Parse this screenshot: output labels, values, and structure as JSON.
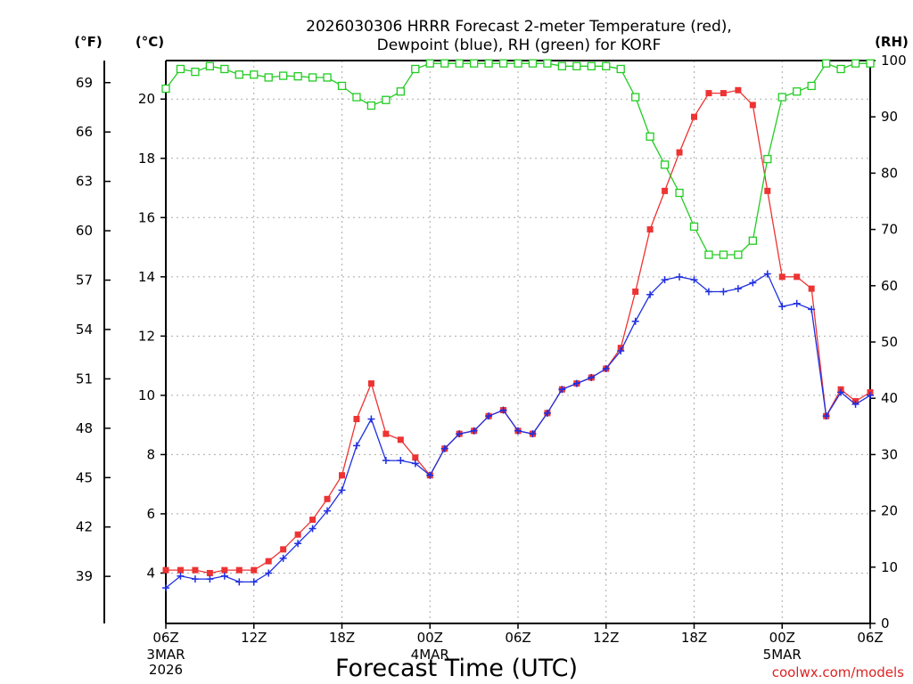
{
  "chart_data": {
    "type": "line",
    "title_line1": "2026030306 HRRR Forecast 2-meter Temperature (red),",
    "title_line2": "Dewpoint (blue), RH (green) for KORF",
    "xlabel": "Forecast Time (UTC)",
    "credit": "coolwx.com/models",
    "unit_labels": {
      "fahrenheit": "(°F)",
      "celsius": "(°C)",
      "rh": "(RH)"
    },
    "x_ticks": [
      "06Z",
      "12Z",
      "18Z",
      "00Z",
      "06Z",
      "12Z",
      "18Z",
      "00Z",
      "06Z"
    ],
    "x_ticks_hours": [
      0,
      6,
      12,
      18,
      24,
      30,
      36,
      42,
      48
    ],
    "date_labels": [
      {
        "hour": 0,
        "lines": [
          "3MAR",
          "2026"
        ]
      },
      {
        "hour": 18,
        "lines": [
          "4MAR"
        ]
      },
      {
        "hour": 42,
        "lines": [
          "5MAR"
        ]
      }
    ],
    "xlim": [
      0,
      48
    ],
    "ylim_celsius": [
      2.3,
      21.3
    ],
    "ylim_rh": [
      0,
      100
    ],
    "y_ticks_celsius": [
      4,
      6,
      8,
      10,
      12,
      14,
      16,
      18,
      20
    ],
    "y_ticks_fahrenheit": [
      39,
      42,
      45,
      48,
      51,
      54,
      57,
      60,
      63,
      66,
      69
    ],
    "y_ticks_rh": [
      0,
      10,
      20,
      30,
      40,
      50,
      60,
      70,
      80,
      90,
      100
    ],
    "grid": true,
    "colors": {
      "temperature": "#ee3333",
      "dewpoint": "#1f2fe0",
      "rh": "#22cc22"
    },
    "series": [
      {
        "name": "Temperature",
        "axis": "celsius",
        "x": [
          0,
          1,
          2,
          3,
          4,
          5,
          6,
          7,
          8,
          9,
          10,
          11,
          12,
          13,
          14,
          15,
          16,
          17,
          18,
          19,
          20,
          21,
          22,
          23,
          24,
          25,
          26,
          27,
          28,
          29,
          30,
          31,
          32,
          33,
          34,
          35,
          36,
          37,
          38,
          39,
          40,
          41,
          42,
          43,
          44,
          45,
          46,
          47,
          48
        ],
        "values": [
          4.1,
          4.1,
          4.1,
          4.0,
          4.1,
          4.1,
          4.1,
          4.4,
          4.8,
          5.3,
          5.8,
          6.5,
          7.3,
          9.2,
          10.4,
          8.7,
          8.5,
          7.9,
          7.3,
          8.2,
          8.7,
          8.8,
          9.3,
          9.5,
          8.8,
          8.7,
          9.4,
          10.2,
          10.4,
          10.6,
          10.9,
          11.6,
          13.5,
          15.6,
          16.9,
          18.2,
          19.4,
          20.2,
          20.2,
          20.3,
          19.8,
          16.9,
          14.0,
          14.0,
          13.6,
          9.3,
          10.2,
          9.8,
          10.1
        ]
      },
      {
        "name": "Dewpoint",
        "axis": "celsius",
        "x": [
          0,
          1,
          2,
          3,
          4,
          5,
          6,
          7,
          8,
          9,
          10,
          11,
          12,
          13,
          14,
          15,
          16,
          17,
          18,
          19,
          20,
          21,
          22,
          23,
          24,
          25,
          26,
          27,
          28,
          29,
          30,
          31,
          32,
          33,
          34,
          35,
          36,
          37,
          38,
          39,
          40,
          41,
          42,
          43,
          44,
          45,
          46,
          47,
          48
        ],
        "values": [
          3.5,
          3.9,
          3.8,
          3.8,
          3.9,
          3.7,
          3.7,
          4.0,
          4.5,
          5.0,
          5.5,
          6.1,
          6.8,
          8.3,
          9.2,
          7.8,
          7.8,
          7.7,
          7.3,
          8.2,
          8.7,
          8.8,
          9.3,
          9.5,
          8.8,
          8.7,
          9.4,
          10.2,
          10.4,
          10.6,
          10.9,
          11.5,
          12.5,
          13.4,
          13.9,
          14.0,
          13.9,
          13.5,
          13.5,
          13.6,
          13.8,
          14.1,
          13.0,
          13.1,
          12.9,
          9.3,
          10.1,
          9.7,
          10.0
        ]
      },
      {
        "name": "RH",
        "axis": "rh",
        "x": [
          0,
          1,
          2,
          3,
          4,
          5,
          6,
          7,
          8,
          9,
          10,
          11,
          12,
          13,
          14,
          15,
          16,
          17,
          18,
          19,
          20,
          21,
          22,
          23,
          24,
          25,
          26,
          27,
          28,
          29,
          30,
          31,
          32,
          33,
          34,
          35,
          36,
          37,
          38,
          39,
          40,
          41,
          42,
          43,
          44,
          45,
          46,
          47,
          48
        ],
        "values": [
          95,
          98.5,
          98,
          99,
          98.5,
          97.5,
          97.5,
          97,
          97.3,
          97.2,
          97,
          97,
          95.5,
          93.5,
          92,
          93,
          94.5,
          98.5,
          99.5,
          99.5,
          99.5,
          99.5,
          99.5,
          99.5,
          99.5,
          99.5,
          99.5,
          99,
          99,
          99,
          99,
          98.5,
          93.5,
          86.5,
          81.5,
          76.5,
          70.5,
          65.5,
          65.5,
          65.5,
          68,
          82.5,
          93.5,
          94.5,
          95.5,
          99.5,
          98.5,
          99.5,
          99.5
        ]
      }
    ]
  }
}
